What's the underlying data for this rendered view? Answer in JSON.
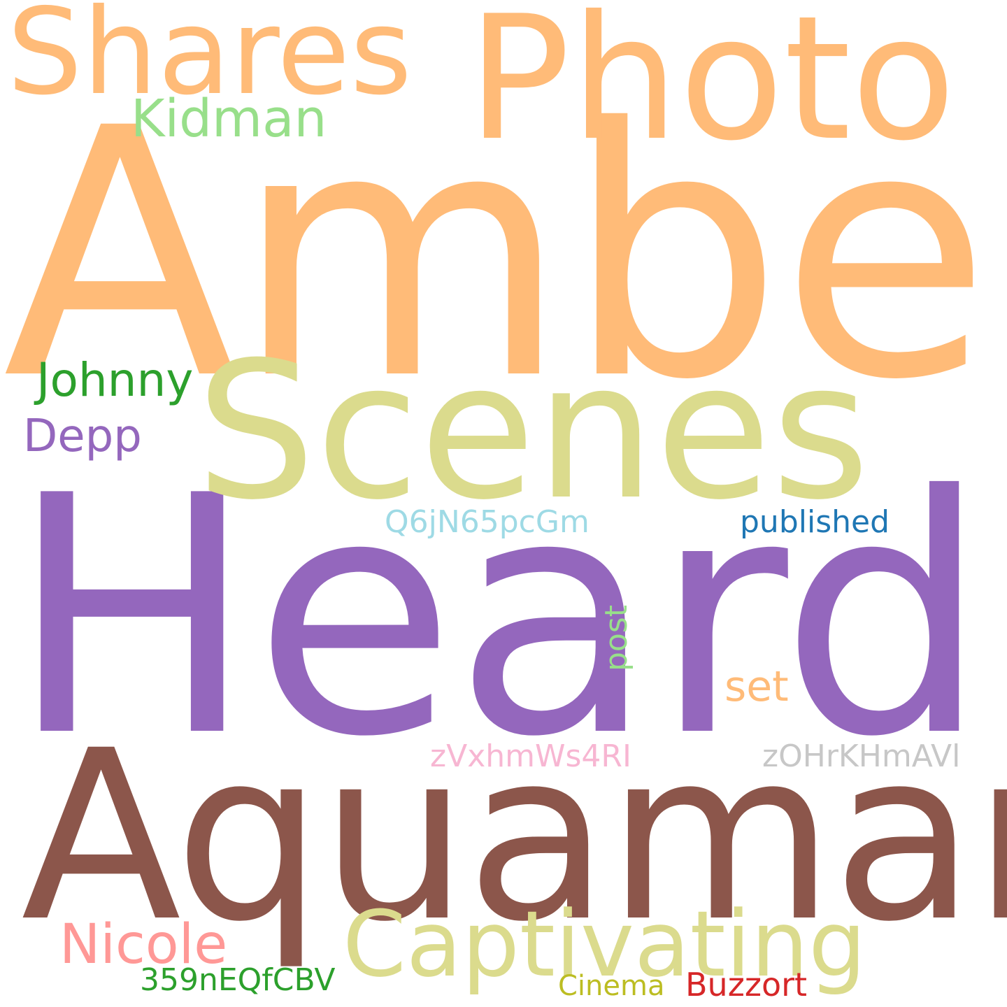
{
  "words": [
    {
      "text": "Amber",
      "color": "#ffbb78"
    },
    {
      "text": "Heard",
      "color": "#9467bd"
    },
    {
      "text": "Aquaman",
      "color": "#8c564b"
    },
    {
      "text": "Scenes",
      "color": "#dbdb8d"
    },
    {
      "text": "Photo",
      "color": "#ffbb78"
    },
    {
      "text": "Shares",
      "color": "#ffbb78"
    },
    {
      "text": "Captivating",
      "color": "#dbdb8d"
    },
    {
      "text": "Kidman",
      "color": "#98df8a"
    },
    {
      "text": "Johnny",
      "color": "#2ca02c"
    },
    {
      "text": "Depp",
      "color": "#9467bd"
    },
    {
      "text": "Nicole",
      "color": "#ff9896"
    },
    {
      "text": "Q6jN65pcGm",
      "color": "#9edae5"
    },
    {
      "text": "published",
      "color": "#1f77b4"
    },
    {
      "text": "post",
      "color": "#98df8a"
    },
    {
      "text": "set",
      "color": "#ffbb78"
    },
    {
      "text": "zVxhmWs4RI",
      "color": "#f7b6d2"
    },
    {
      "text": "zOHrKHmAVl",
      "color": "#c7c7c7"
    },
    {
      "text": "359nEQfCBV",
      "color": "#2ca02c"
    },
    {
      "text": "Cinema",
      "color": "#bcbd22"
    },
    {
      "text": "Buzzort",
      "color": "#d62728"
    }
  ]
}
